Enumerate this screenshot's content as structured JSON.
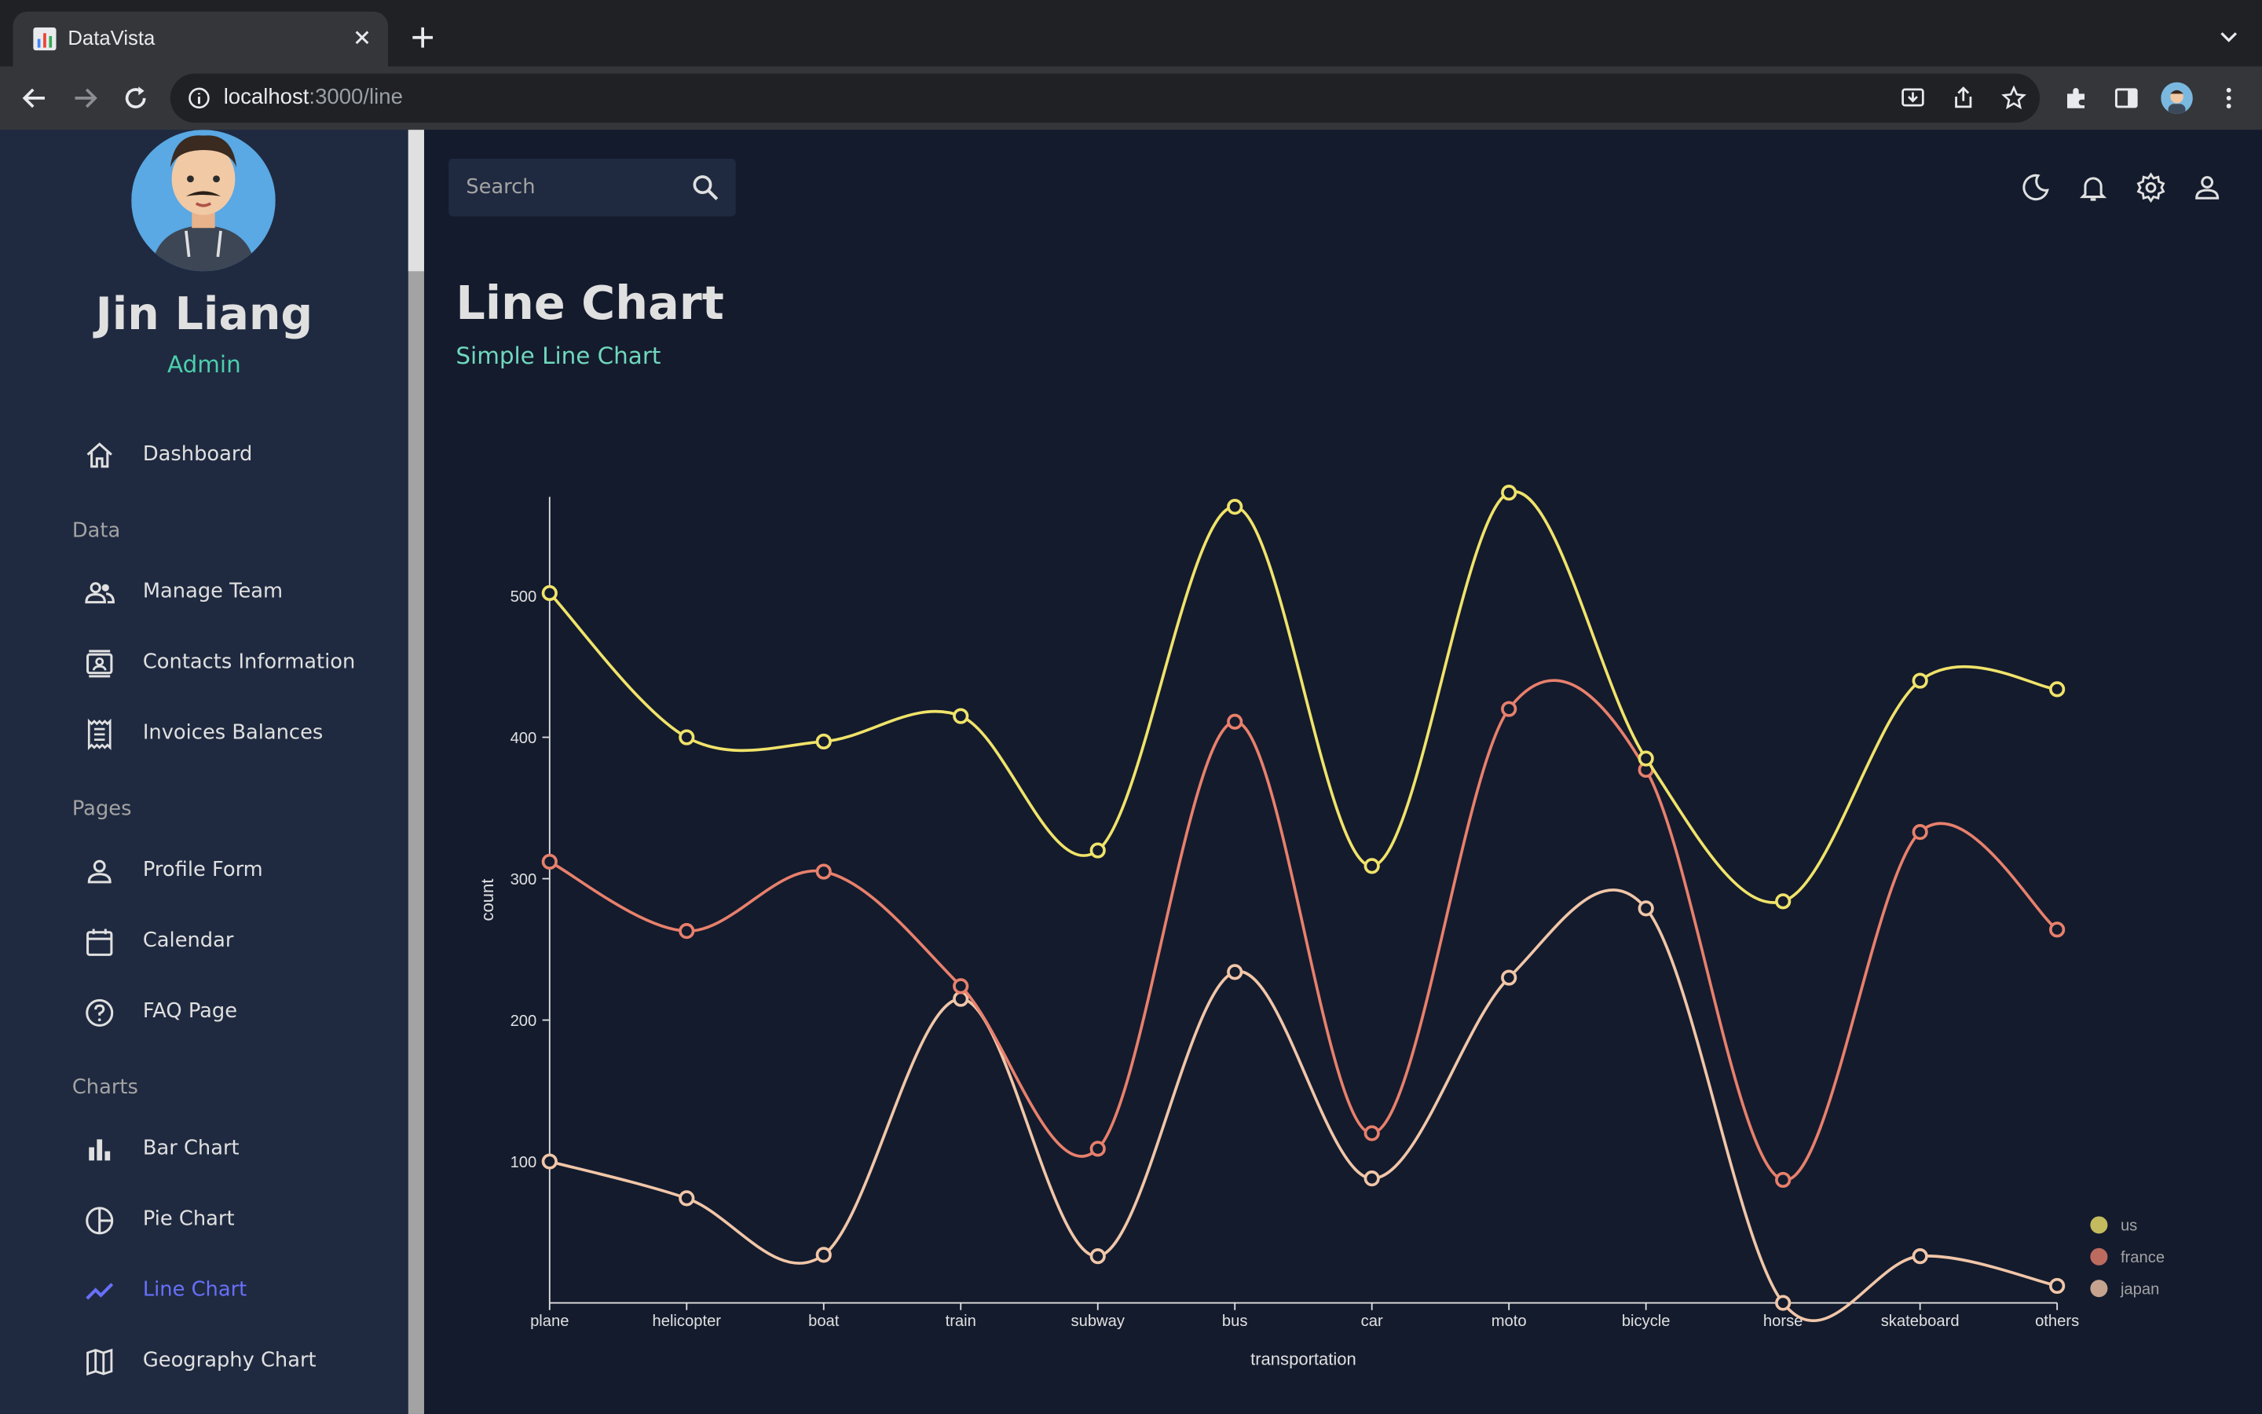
{
  "browser": {
    "tab_title": "DataVista",
    "url_host": "localhost",
    "url_path": ":3000/line"
  },
  "sidebar": {
    "user_name": "Jin Liang",
    "user_role": "Admin",
    "items": [
      {
        "label": "Dashboard",
        "icon": "home-icon"
      },
      {
        "section": "Data"
      },
      {
        "label": "Manage Team",
        "icon": "people-icon"
      },
      {
        "label": "Contacts Information",
        "icon": "contacts-icon"
      },
      {
        "label": "Invoices Balances",
        "icon": "receipt-icon"
      },
      {
        "section": "Pages"
      },
      {
        "label": "Profile Form",
        "icon": "person-icon"
      },
      {
        "label": "Calendar",
        "icon": "calendar-icon"
      },
      {
        "label": "FAQ Page",
        "icon": "help-icon"
      },
      {
        "section": "Charts"
      },
      {
        "label": "Bar Chart",
        "icon": "bar-chart-icon"
      },
      {
        "label": "Pie Chart",
        "icon": "pie-chart-icon"
      },
      {
        "label": "Line Chart",
        "icon": "line-chart-icon",
        "active": true
      },
      {
        "label": "Geography Chart",
        "icon": "map-icon"
      }
    ]
  },
  "topbar": {
    "search_placeholder": "Search"
  },
  "header": {
    "title": "Line Chart",
    "subtitle": "Simple Line Chart"
  },
  "colors": {
    "accent_green": "#4cceac",
    "active_nav": "#6870fa",
    "us": "#f0e36a",
    "france": "#e8806c",
    "japan": "#f1c6a8"
  },
  "chart_data": {
    "type": "line",
    "xlabel": "transportation",
    "ylabel": "count",
    "categories": [
      "plane",
      "helicopter",
      "boat",
      "train",
      "subway",
      "bus",
      "car",
      "moto",
      "bicycle",
      "horse",
      "skateboard",
      "others"
    ],
    "y_ticks": [
      100,
      200,
      300,
      400,
      500
    ],
    "ylim": [
      0,
      570
    ],
    "series": [
      {
        "name": "us",
        "color": "#f0e36a",
        "values": [
          502,
          400,
          397,
          415,
          320,
          563,
          309,
          573,
          385,
          284,
          440,
          434
        ]
      },
      {
        "name": "france",
        "color": "#e8806c",
        "values": [
          312,
          263,
          305,
          224,
          109,
          411,
          120,
          420,
          377,
          87,
          333,
          264
        ]
      },
      {
        "name": "japan",
        "color": "#f1c6a8",
        "values": [
          100,
          74,
          34,
          215,
          33,
          234,
          88,
          230,
          279,
          0,
          33,
          12
        ]
      }
    ],
    "legend_position": "bottom-right"
  }
}
